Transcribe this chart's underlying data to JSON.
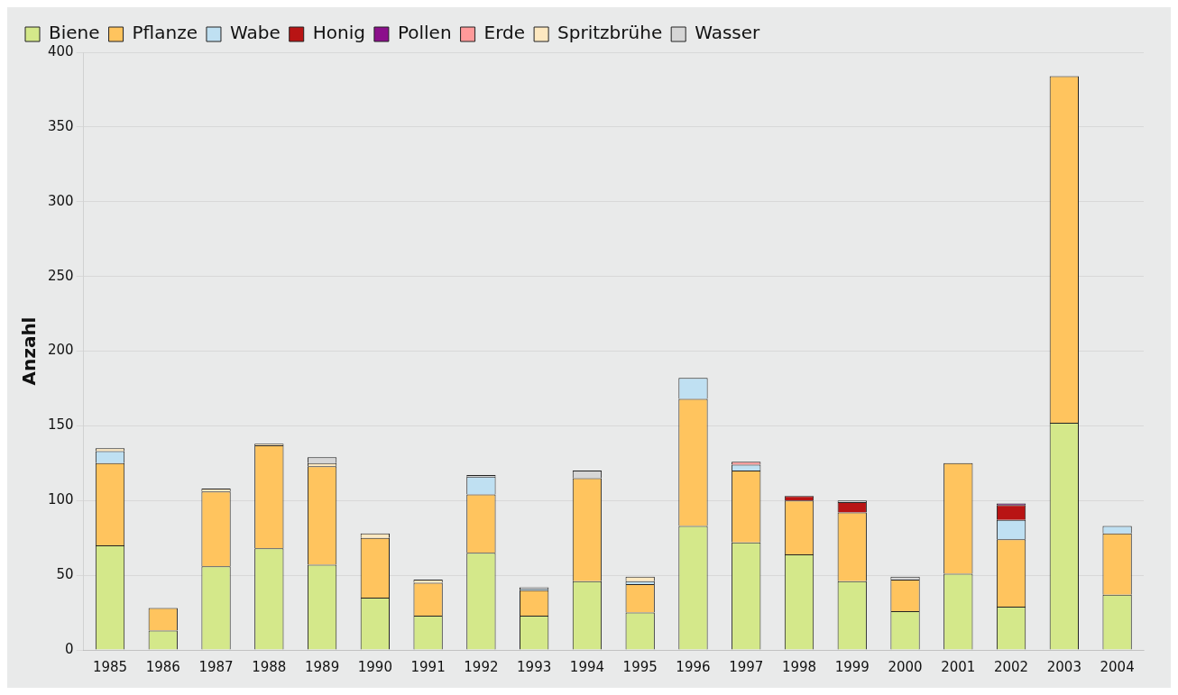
{
  "chart_data": {
    "type": "bar",
    "stacked": true,
    "ylabel": "Anzahl",
    "categories": [
      "1985",
      "1986",
      "1987",
      "1988",
      "1989",
      "1990",
      "1991",
      "1992",
      "1993",
      "1994",
      "1995",
      "1996",
      "1997",
      "1998",
      "1999",
      "2000",
      "2001",
      "2002",
      "2003",
      "2004"
    ],
    "series": [
      {
        "name": "Biene",
        "color": "#d4e88a",
        "values": [
          70,
          13,
          56,
          68,
          57,
          35,
          23,
          65,
          23,
          46,
          25,
          83,
          72,
          64,
          46,
          26,
          51,
          29,
          152,
          37
        ]
      },
      {
        "name": "Pflanze",
        "color": "#ffc45e",
        "values": [
          55,
          15,
          50,
          69,
          66,
          40,
          22,
          39,
          17,
          69,
          19,
          85,
          48,
          36,
          46,
          21,
          74,
          45,
          232,
          41
        ]
      },
      {
        "name": "Wabe",
        "color": "#bfe0f2",
        "values": [
          8,
          null,
          null,
          null,
          null,
          null,
          null,
          12,
          1,
          null,
          2,
          14,
          4,
          null,
          null,
          null,
          null,
          13,
          null,
          5
        ]
      },
      {
        "name": "Honig",
        "color": "#b81414",
        "values": [
          null,
          null,
          null,
          null,
          null,
          null,
          null,
          null,
          null,
          null,
          null,
          null,
          null,
          3,
          7,
          null,
          null,
          10,
          null,
          null
        ]
      },
      {
        "name": "Pollen",
        "color": "#8b0f8b",
        "values": [
          null,
          null,
          null,
          null,
          null,
          null,
          null,
          null,
          null,
          null,
          null,
          null,
          null,
          null,
          null,
          null,
          null,
          1,
          null,
          null
        ]
      },
      {
        "name": "Erde",
        "color": "#ff9a9a",
        "values": [
          null,
          null,
          null,
          null,
          null,
          null,
          null,
          null,
          null,
          null,
          null,
          null,
          2,
          null,
          null,
          null,
          null,
          null,
          null,
          null
        ]
      },
      {
        "name": "Spritzbrühe",
        "color": "#fde8c0",
        "values": [
          2,
          null,
          2,
          1,
          2,
          3,
          2,
          null,
          null,
          null,
          3,
          null,
          null,
          null,
          null,
          null,
          null,
          null,
          null,
          null
        ]
      },
      {
        "name": "Wasser",
        "color": "#d6d6d6",
        "values": [
          null,
          null,
          null,
          null,
          4,
          null,
          null,
          1,
          1,
          5,
          null,
          null,
          null,
          null,
          1,
          2,
          null,
          null,
          null,
          null
        ]
      }
    ],
    "ylim": [
      0,
      400
    ],
    "yticks": [
      0,
      50,
      100,
      150,
      200,
      250,
      300,
      350,
      400
    ],
    "grid": "y",
    "legend": "top left"
  }
}
